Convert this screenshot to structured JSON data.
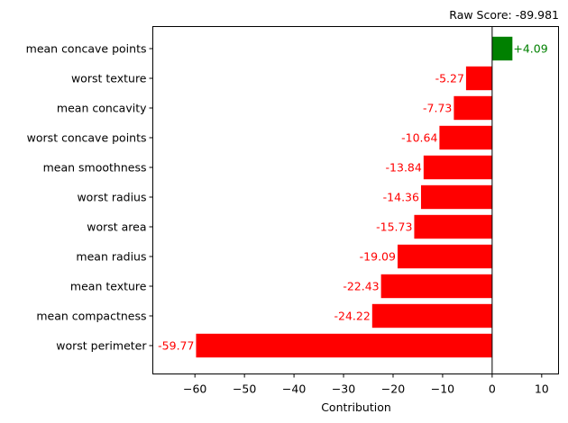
{
  "chart_data": {
    "type": "bar",
    "orientation": "horizontal",
    "title": "",
    "annotation": "Raw Score: -89.981",
    "xlabel": "Contribution",
    "ylabel": "",
    "xlim": [
      -68.5,
      13.4
    ],
    "xticks": [
      -60,
      -50,
      -40,
      -30,
      -20,
      -10,
      0,
      10
    ],
    "xtick_labels": [
      "−60",
      "−50",
      "−40",
      "−30",
      "−20",
      "−10",
      "0",
      "10"
    ],
    "categories": [
      "mean concave points",
      "worst texture",
      "mean concavity",
      "worst concave points",
      "mean smoothness",
      "worst radius",
      "worst area",
      "mean radius",
      "mean texture",
      "mean compactness",
      "worst perimeter"
    ],
    "values": [
      4.09,
      -5.27,
      -7.73,
      -10.64,
      -13.84,
      -14.36,
      -15.73,
      -19.09,
      -22.43,
      -24.22,
      -59.77
    ],
    "value_labels": [
      "+4.09",
      "-5.27",
      "-7.73",
      "-10.64",
      "-13.84",
      "-14.36",
      "-15.73",
      "-19.09",
      "-22.43",
      "-24.22",
      "-59.77"
    ],
    "colors": {
      "positive": "#008000",
      "negative": "#ff0000",
      "axis": "#000000"
    },
    "grid": false,
    "legend": "none"
  }
}
